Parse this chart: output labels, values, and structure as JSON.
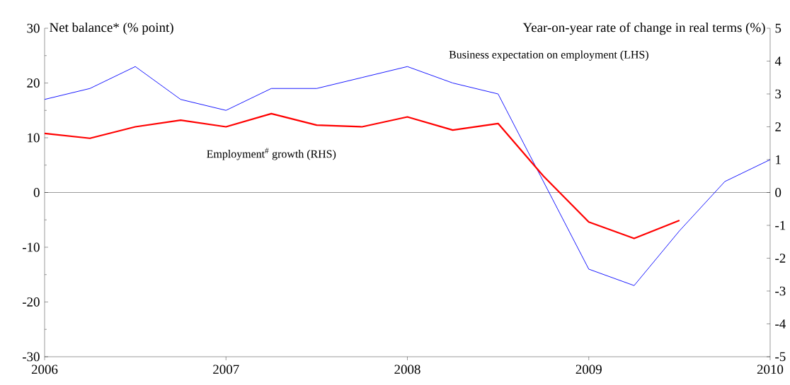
{
  "chart_data": {
    "type": "line",
    "ylabel": "Net balance* (% point)",
    "y2label": "Year-on-year rate of change in real terms (%)",
    "xlim": [
      2006,
      2010
    ],
    "xticks": [
      2006,
      2007,
      2008,
      2009,
      2010
    ],
    "ylim": [
      -30,
      30
    ],
    "yticks": [
      -30,
      -20,
      -10,
      0,
      10,
      20,
      30
    ],
    "y2lim": [
      -5,
      5
    ],
    "y2ticks": [
      -5,
      -4,
      -3,
      -2,
      -1,
      0,
      1,
      2,
      3,
      4,
      5
    ],
    "ref_lines": [
      {
        "axis": "y",
        "value": 0,
        "color": "#000000"
      }
    ],
    "series": [
      {
        "name": "Business expectation on employment (LHS)",
        "color": "#0000ff",
        "x": [
          2006,
          2006.25,
          2006.5,
          2006.75,
          2007,
          2007.25,
          2007.5,
          2007.75,
          2008,
          2008.25,
          2008.5,
          2008.75,
          2009,
          2009.25,
          2009.5,
          2009.75,
          2010
        ],
        "values": [
          17,
          19,
          23,
          17,
          15,
          19,
          19,
          21,
          23,
          20,
          18,
          2,
          -14,
          -17,
          -7,
          2,
          6
        ]
      },
      {
        "name": "Employment$^{#}$ growth  (RHS)",
        "color": "#ff0000",
        "axis": "y2",
        "x": [
          2006,
          2006.25,
          2006.5,
          2006.75,
          2007,
          2007.25,
          2007.5,
          2007.75,
          2008,
          2008.25,
          2008.5,
          2008.75,
          2009,
          2009.25,
          2009.5
        ],
        "values": [
          1.8,
          1.65,
          2.0,
          2.2,
          2.0,
          2.4,
          2.05,
          2.0,
          2.3,
          1.9,
          2.1,
          0.5,
          -0.9,
          -1.4,
          -0.85
        ]
      }
    ]
  }
}
